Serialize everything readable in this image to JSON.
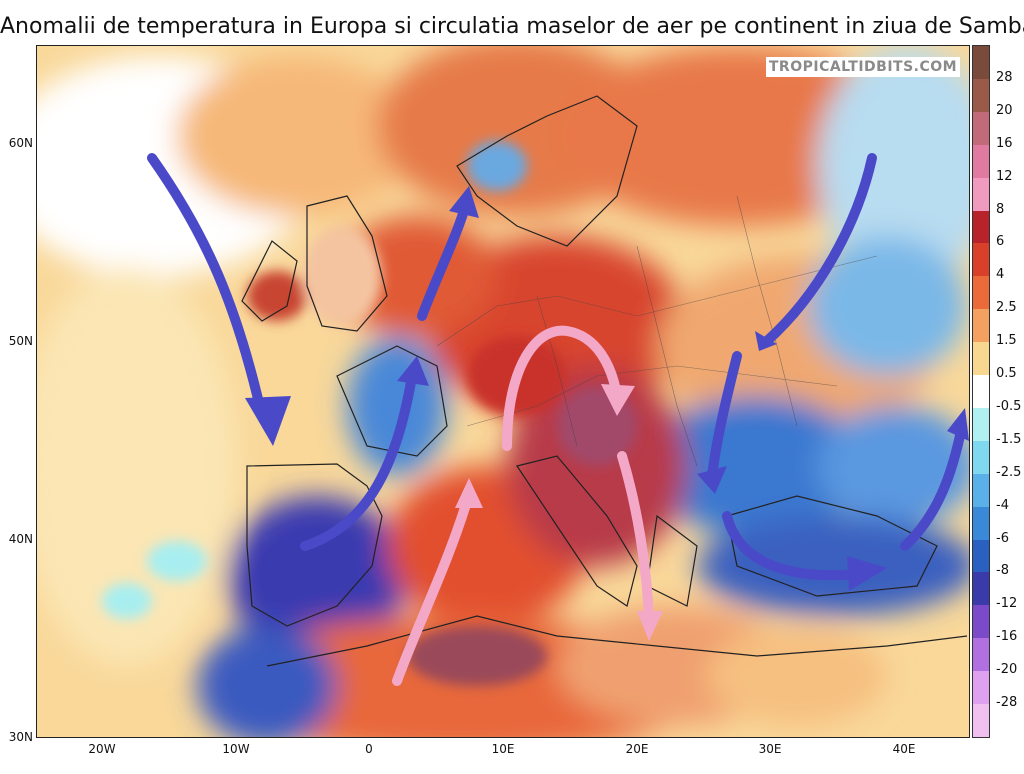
{
  "title": "Anomalii de temperatura in Europa si circulatia maselor de aer pe continent in ziua de Sambata",
  "watermark": "TROPICALTIDBITS.COM",
  "axes": {
    "lat_labels": [
      "60N",
      "50N",
      "40N",
      "30N"
    ],
    "lon_labels": [
      "20W",
      "10W",
      "0",
      "10E",
      "20E",
      "30E",
      "40E"
    ]
  },
  "colorbar": {
    "labels": [
      "28",
      "20",
      "16",
      "12",
      "8",
      "6",
      "4",
      "2.5",
      "1.5",
      "0.5",
      "-0.5",
      "-1.5",
      "-2.5",
      "-4",
      "-6",
      "-8",
      "-12",
      "-16",
      "-20",
      "-28"
    ],
    "colors": [
      "#7a4a3a",
      "#9a5a4a",
      "#c06a7a",
      "#e07aa0",
      "#f09ac0",
      "#b8222a",
      "#d8402a",
      "#ea6a3a",
      "#f4a060",
      "#f8d890",
      "#ffffff",
      "#b0f0f0",
      "#80d8f0",
      "#5ab0e8",
      "#3a88d8",
      "#2a60c0",
      "#3a3aa8",
      "#7a4ac8",
      "#b070e0",
      "#e0a0f0",
      "#f0c0f0"
    ]
  },
  "arrows": {
    "cold_color": "#4a4ac8",
    "warm_color": "#f4a8c8"
  }
}
